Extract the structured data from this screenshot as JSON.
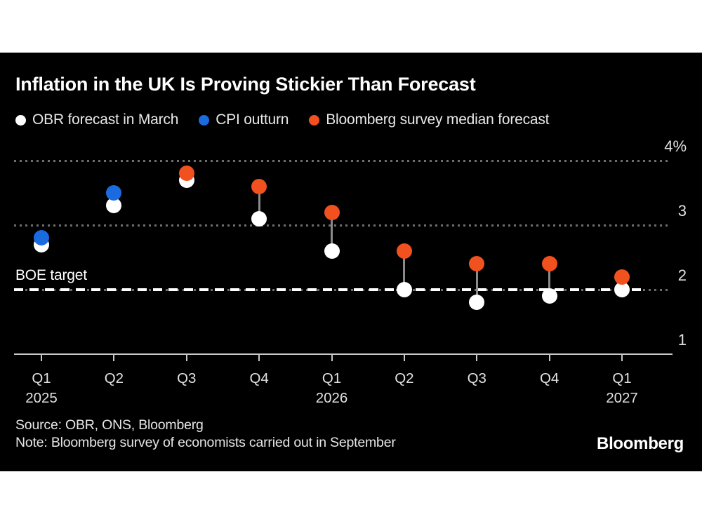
{
  "chart": {
    "title": "Inflation in the UK Is Proving Stickier Than Forecast"
  },
  "chart_data": {
    "type": "scatter",
    "categories": [
      "Q1 2025",
      "Q2 2025",
      "Q3 2025",
      "Q4 2025",
      "Q1 2026",
      "Q2 2026",
      "Q3 2026",
      "Q4 2026",
      "Q1 2027"
    ],
    "x_tick_labels": [
      "Q1",
      "Q2",
      "Q3",
      "Q4",
      "Q1",
      "Q2",
      "Q3",
      "Q4",
      "Q1"
    ],
    "x_year_labels": [
      {
        "index": 0,
        "label": "2025"
      },
      {
        "index": 4,
        "label": "2026"
      },
      {
        "index": 8,
        "label": "2027"
      }
    ],
    "series": [
      {
        "key": "obr-forecast",
        "name": "OBR forecast in March",
        "color": "#ffffff",
        "values": [
          2.7,
          3.3,
          3.7,
          3.1,
          2.6,
          2.0,
          1.8,
          1.9,
          2.0
        ]
      },
      {
        "key": "cpi-outturn",
        "name": "CPI outturn",
        "color": "#1b6be0",
        "values": [
          2.8,
          3.5,
          null,
          null,
          null,
          null,
          null,
          null,
          null
        ]
      },
      {
        "key": "bloomberg-survey",
        "name": "Bloomberg survey median forecast",
        "color": "#f1501f",
        "values": [
          null,
          null,
          3.8,
          3.6,
          3.2,
          2.6,
          2.4,
          2.4,
          2.2
        ]
      }
    ],
    "ylim": [
      1,
      4
    ],
    "y_ticks": [
      {
        "value": 4,
        "label": "4%"
      },
      {
        "value": 3,
        "label": "3"
      },
      {
        "value": 2,
        "label": "2"
      },
      {
        "value": 1,
        "label": "1"
      }
    ],
    "target_line": {
      "value": 2,
      "label": "BOE target"
    },
    "grid": "horizontal dotted",
    "legend_position": "top"
  },
  "colors": {
    "card_background": "#000000",
    "page_background": "#ffffff",
    "grid": "#6e6e6e",
    "axis": "#c8c8c8",
    "axis_text": "#e0e0e0",
    "target_line": "#ffffff",
    "connector": "#8a8a8a"
  },
  "footer": {
    "source": "Source: OBR, ONS, Bloomberg",
    "note": "Note: Bloomberg survey of economists carried out in September",
    "logo": "Bloomberg"
  }
}
